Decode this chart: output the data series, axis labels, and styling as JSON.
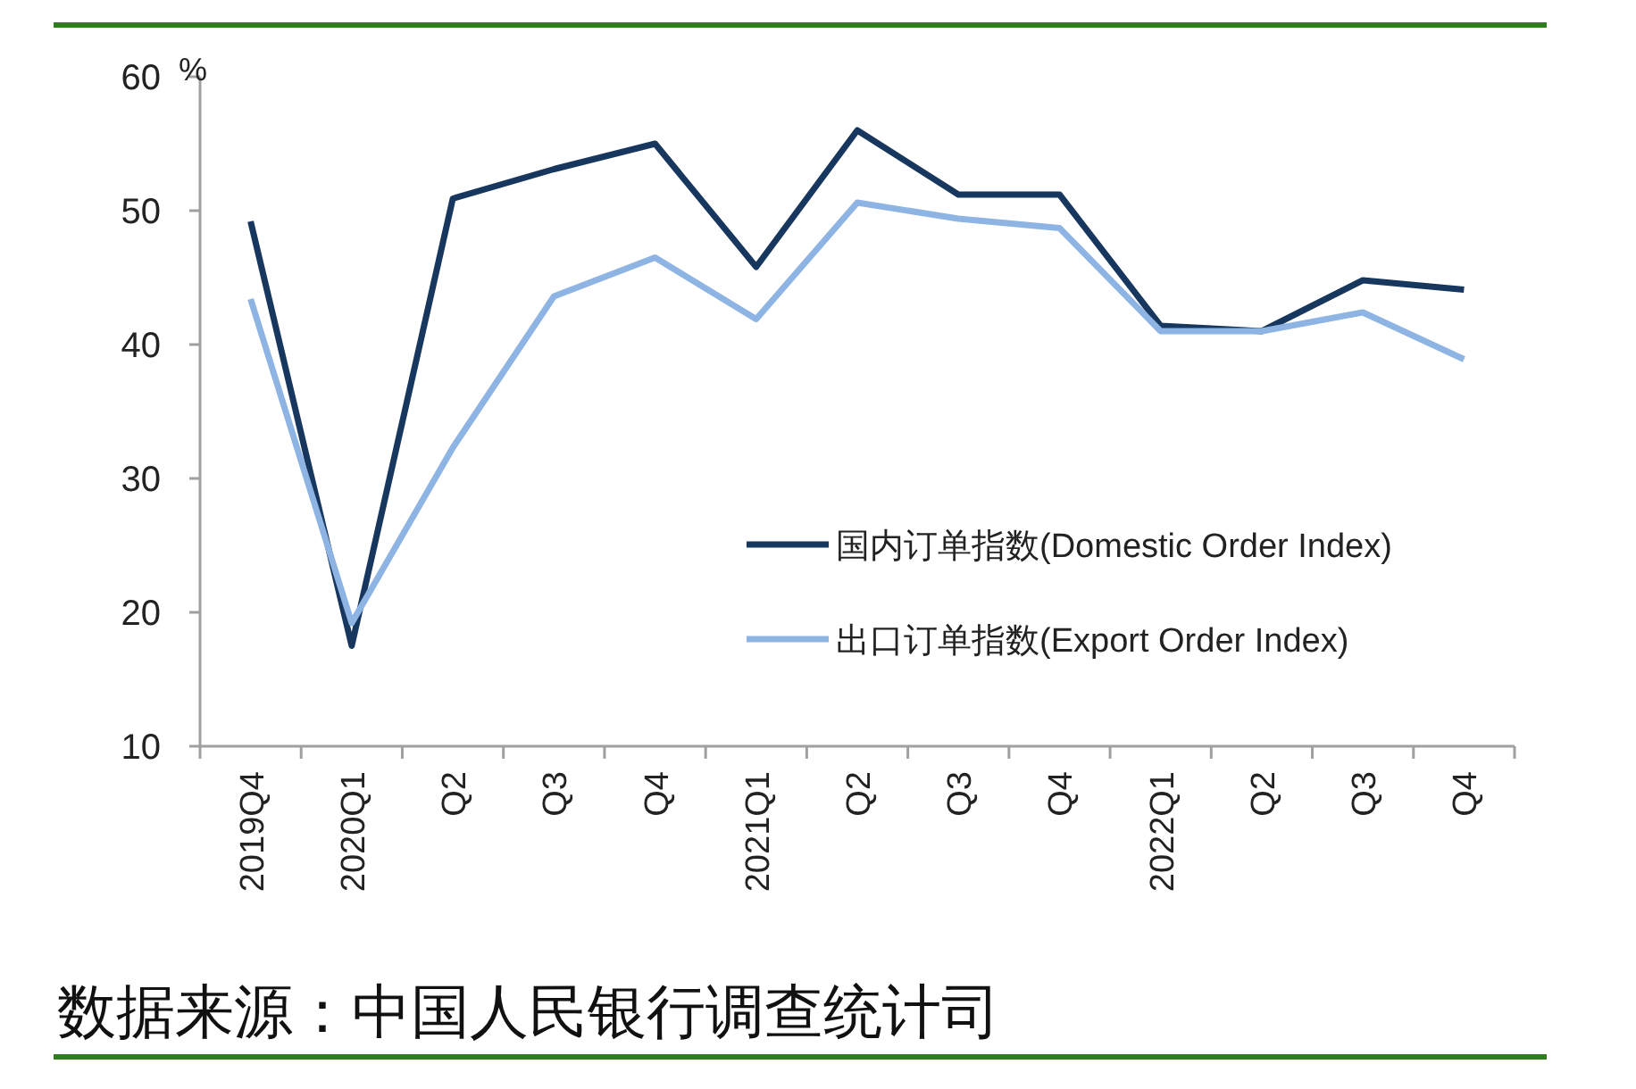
{
  "chart_data": {
    "type": "line",
    "ylabel": "%",
    "categories": [
      "2019Q4",
      "2020Q1",
      "Q2",
      "Q3",
      "Q4",
      "2021Q1",
      "Q2",
      "Q3",
      "Q4",
      "2022Q1",
      "Q2",
      "Q3",
      "Q4"
    ],
    "series": [
      {
        "name": "国内订单指数(Domestic Order Index)",
        "color": "#17375e",
        "values": [
          49.2,
          17.5,
          50.9,
          53.1,
          55.0,
          45.8,
          56.0,
          51.2,
          51.2,
          41.4,
          41.0,
          44.8,
          44.1
        ]
      },
      {
        "name": "出口订单指数(Export Order Index)",
        "color": "#8db4e2",
        "values": [
          43.4,
          19.2,
          32.3,
          43.6,
          46.5,
          41.9,
          50.6,
          49.4,
          48.7,
          41.0,
          41.0,
          42.4,
          38.9
        ]
      }
    ],
    "ylim": [
      10,
      60
    ],
    "yticks": [
      10,
      20,
      30,
      40,
      50,
      60
    ],
    "grid": false,
    "legend": "right",
    "marker": "none",
    "line_style": "solid",
    "annotations": [
      "数据来源：中国人民银行调查统计司"
    ]
  }
}
